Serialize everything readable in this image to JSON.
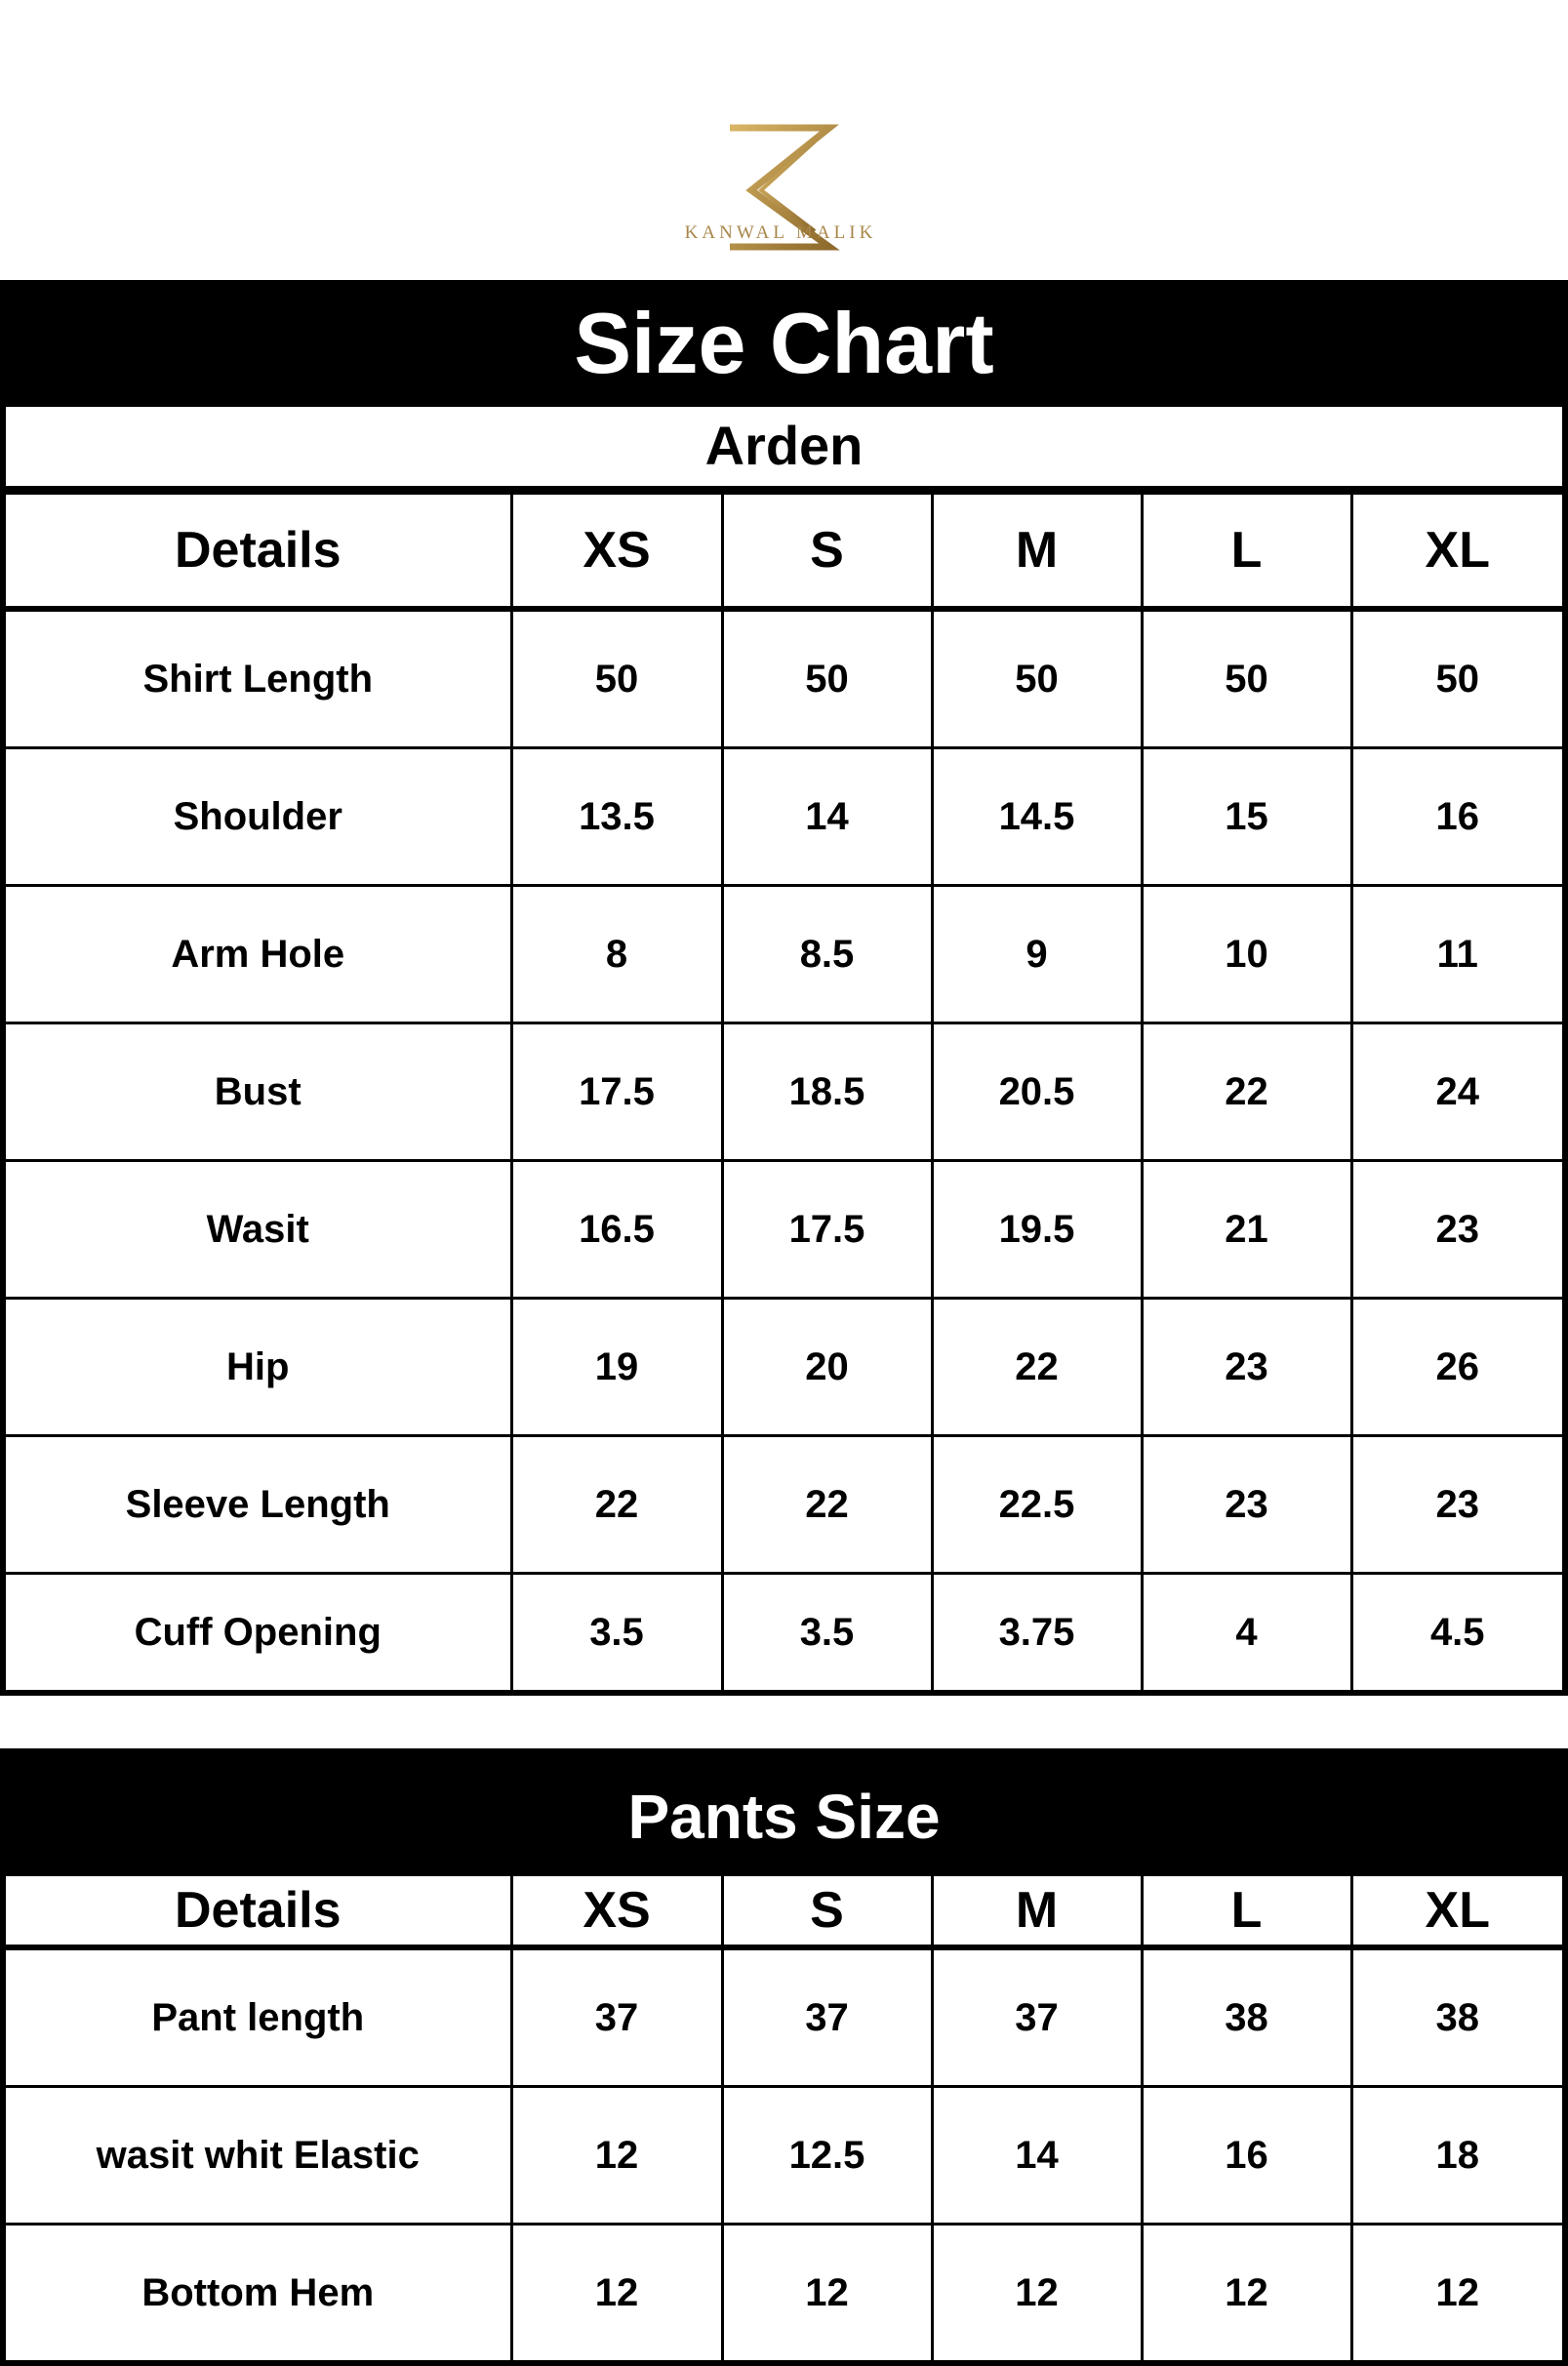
{
  "brand": {
    "name": "KANWAL MALIK",
    "logo_color": "#b8924a"
  },
  "size_chart": {
    "title": "Size Chart",
    "product": "Arden",
    "columns": [
      "Details",
      "XS",
      "S",
      "M",
      "L",
      "XL"
    ],
    "rows": [
      {
        "label": "Shirt Length",
        "values": [
          "50",
          "50",
          "50",
          "50",
          "50"
        ]
      },
      {
        "label": "Shoulder",
        "values": [
          "13.5",
          "14",
          "14.5",
          "15",
          "16"
        ]
      },
      {
        "label": "Arm Hole",
        "values": [
          "8",
          "8.5",
          "9",
          "10",
          "11"
        ]
      },
      {
        "label": "Bust",
        "values": [
          "17.5",
          "18.5",
          "20.5",
          "22",
          "24"
        ]
      },
      {
        "label": "Wasit",
        "values": [
          "16.5",
          "17.5",
          "19.5",
          "21",
          "23"
        ]
      },
      {
        "label": "Hip",
        "values": [
          "19",
          "20",
          "22",
          "23",
          "26"
        ]
      },
      {
        "label": "Sleeve Length",
        "values": [
          "22",
          "22",
          "22.5",
          "23",
          "23"
        ]
      },
      {
        "label": "Cuff Opening",
        "values": [
          "3.5",
          "3.5",
          "3.75",
          "4",
          "4.5"
        ]
      }
    ]
  },
  "pants_chart": {
    "title": "Pants Size",
    "columns": [
      "Details",
      "XS",
      "S",
      "M",
      "L",
      "XL"
    ],
    "rows": [
      {
        "label": "Pant length",
        "values": [
          "37",
          "37",
          "37",
          "38",
          "38"
        ]
      },
      {
        "label": "wasit whit Elastic",
        "values": [
          "12",
          "12.5",
          "14",
          "16",
          "18"
        ]
      },
      {
        "label": "Bottom Hem",
        "values": [
          "12",
          "12",
          "12",
          "12",
          "12"
        ]
      }
    ]
  }
}
